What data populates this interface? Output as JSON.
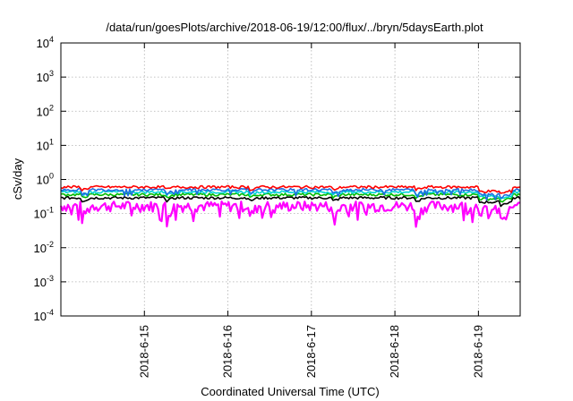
{
  "chart_data": {
    "type": "line",
    "title": "/data/run/goesPlots/archive/2018-06-19/12:00/flux/../bryn/5daysEarth.plot",
    "xlabel": "Coordinated Universal Time (UTC)",
    "ylabel": "cSv/day",
    "y_scale": "log",
    "ylim": [
      0.0001,
      10000
    ],
    "y_ticks": [
      {
        "base": "10",
        "exp": "-4"
      },
      {
        "base": "10",
        "exp": "-3"
      },
      {
        "base": "10",
        "exp": "-2"
      },
      {
        "base": "10",
        "exp": "-1"
      },
      {
        "base": "10",
        "exp": "0"
      },
      {
        "base": "10",
        "exp": "1"
      },
      {
        "base": "10",
        "exp": "2"
      },
      {
        "base": "10",
        "exp": "3"
      },
      {
        "base": "10",
        "exp": "4"
      }
    ],
    "x_ticks": [
      "2018-6-15",
      "2018-6-16",
      "2018-6-17",
      "2018-6-18",
      "2018-6-19"
    ],
    "xlim": [
      "2018-06-14 00:00",
      "2018-06-19 12:00"
    ],
    "grid": true,
    "series": [
      {
        "color": "#ff00ff",
        "values_approx": "0.10-0.25 cSv/day, dips to ~0.07",
        "dip_depth": 1.0
      },
      {
        "color": "#000000",
        "values_approx": "~0.3 cSv/day",
        "dip_depth": 0.35
      },
      {
        "color": "#00bb00",
        "values_approx": "~0.35-0.4 cSv/day",
        "dip_depth": 0.3
      },
      {
        "color": "#00d5d5",
        "values_approx": "~0.4-0.45 cSv/day",
        "dip_depth": 0.3
      },
      {
        "color": "#1e6fe0",
        "values_approx": "~0.5 cSv/day",
        "dip_depth": 0.45
      },
      {
        "color": "#ff0000",
        "values_approx": "~0.6 cSv/day",
        "dip_depth": 0.3
      }
    ]
  }
}
